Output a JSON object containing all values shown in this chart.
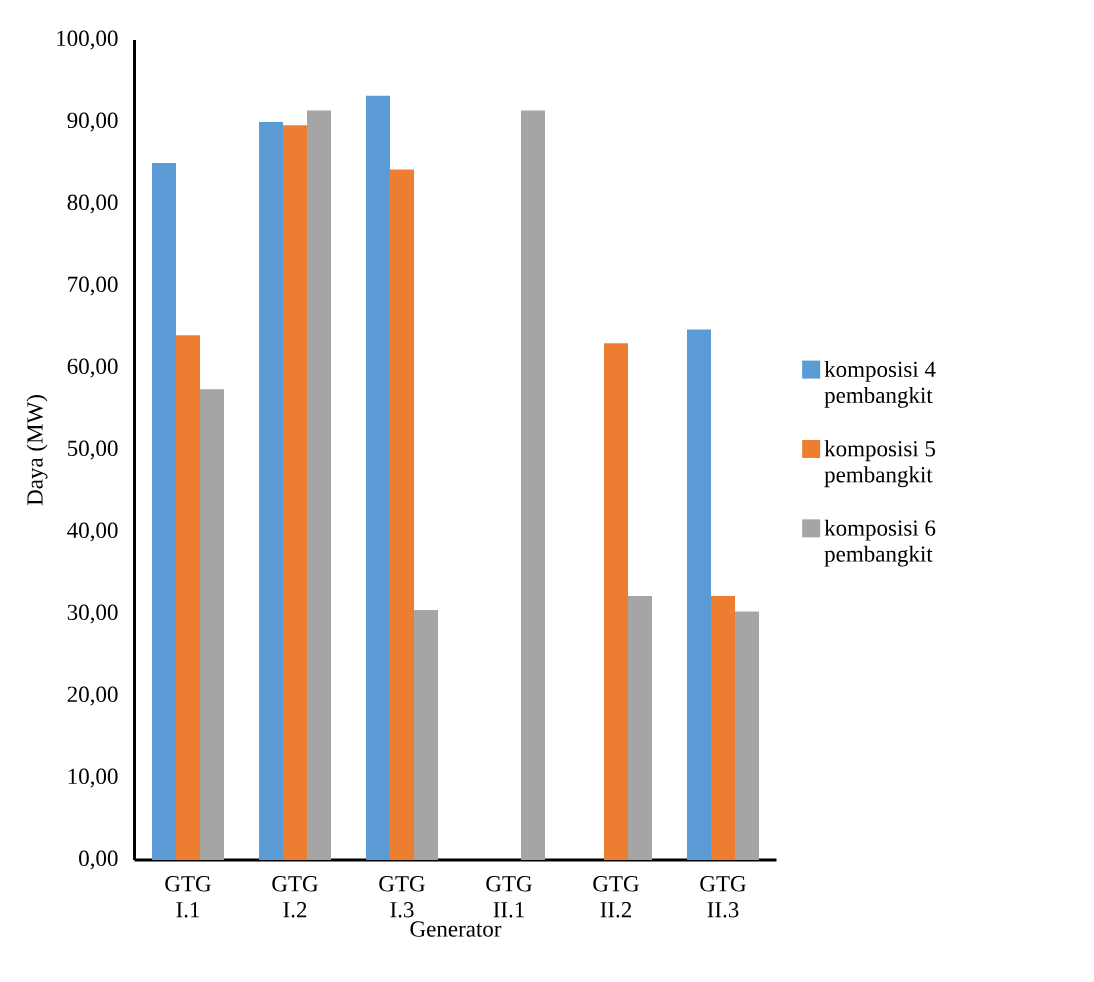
{
  "chart_data": {
    "type": "bar",
    "xlabel": "Generator",
    "ylabel": "Daya (MW)",
    "categories": [
      "GTG I.1",
      "GTG I.2",
      "GTG I.3",
      "GTG II.1",
      "GTG II.2",
      "GTG II.3"
    ],
    "series": [
      {
        "name": "komposisi 4 pembangkit",
        "color": "#5b9bd5",
        "values": [
          85,
          90,
          93.2,
          null,
          null,
          64.7
        ]
      },
      {
        "name": "komposisi 5 pembangkit",
        "color": "#ed7d31",
        "values": [
          64,
          89.6,
          84.2,
          null,
          63,
          32.2
        ]
      },
      {
        "name": "komposisi 6 pembangkit",
        "color": "#a5a5a5",
        "values": [
          57.4,
          91.4,
          30.5,
          91.4,
          32.2,
          30.3
        ]
      }
    ],
    "ylim": [
      0,
      100
    ],
    "yticks": [
      {
        "value": 0,
        "label": "0,00"
      },
      {
        "value": 10,
        "label": "10,00"
      },
      {
        "value": 20,
        "label": "20,00"
      },
      {
        "value": 30,
        "label": "30,00"
      },
      {
        "value": 40,
        "label": "40,00"
      },
      {
        "value": 50,
        "label": "50,00"
      },
      {
        "value": 60,
        "label": "60,00"
      },
      {
        "value": 70,
        "label": "70,00"
      },
      {
        "value": 80,
        "label": "80,00"
      },
      {
        "value": 90,
        "label": "90,00"
      },
      {
        "value": 100,
        "label": "100,00"
      }
    ],
    "grid": false,
    "legend": "right"
  }
}
